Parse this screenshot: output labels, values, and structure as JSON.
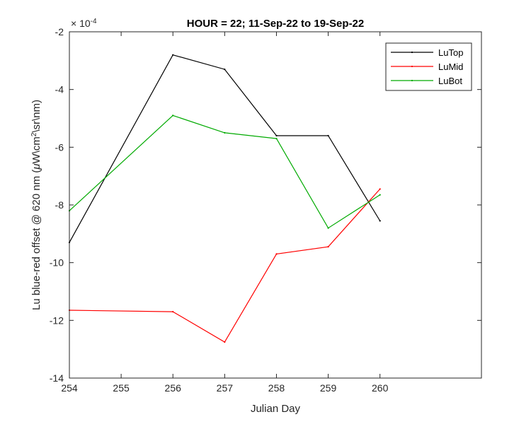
{
  "chart_data": {
    "type": "line",
    "title": "HOUR = 22; 11-Sep-22 to 19-Sep-22",
    "xlabel": "Julian Day",
    "ylabel_prefix": "Lu blue-red offset @ 620 nm (",
    "ylabel_mu": "μ",
    "ylabel_mid": "W\\cm",
    "ylabel_sup": "2",
    "ylabel_suffix": "\\sr\\nm)",
    "y_exponent_base": "× 10",
    "y_exponent": "-4",
    "xlim": [
      254,
      261.96
    ],
    "ylim": [
      -14,
      -2
    ],
    "x_ticks": [
      254,
      255,
      256,
      257,
      258,
      259,
      260
    ],
    "x_tick_labels": [
      "254",
      "255",
      "256",
      "257",
      "258",
      "259",
      "260"
    ],
    "y_ticks": [
      -14,
      -12,
      -10,
      -8,
      -6,
      -4,
      -2
    ],
    "y_tick_labels": [
      "-14",
      "-12",
      "-10",
      "-8",
      "-6",
      "-4",
      "-2"
    ],
    "grid": false,
    "legend_position": "top-right",
    "x": [
      254,
      256,
      257,
      258,
      259,
      260
    ],
    "series": [
      {
        "name": "LuTop",
        "color": "#000000",
        "values": [
          -9.3,
          -2.8,
          -3.3,
          -5.6,
          -5.6,
          -8.55
        ]
      },
      {
        "name": "LuMid",
        "color": "#ff0000",
        "values": [
          -11.65,
          -11.7,
          -12.75,
          -9.7,
          -9.45,
          -7.45
        ]
      },
      {
        "name": "LuBot",
        "color": "#00aa00",
        "values": [
          -8.2,
          -4.9,
          -5.5,
          -5.7,
          -8.8,
          -7.65
        ]
      }
    ]
  }
}
